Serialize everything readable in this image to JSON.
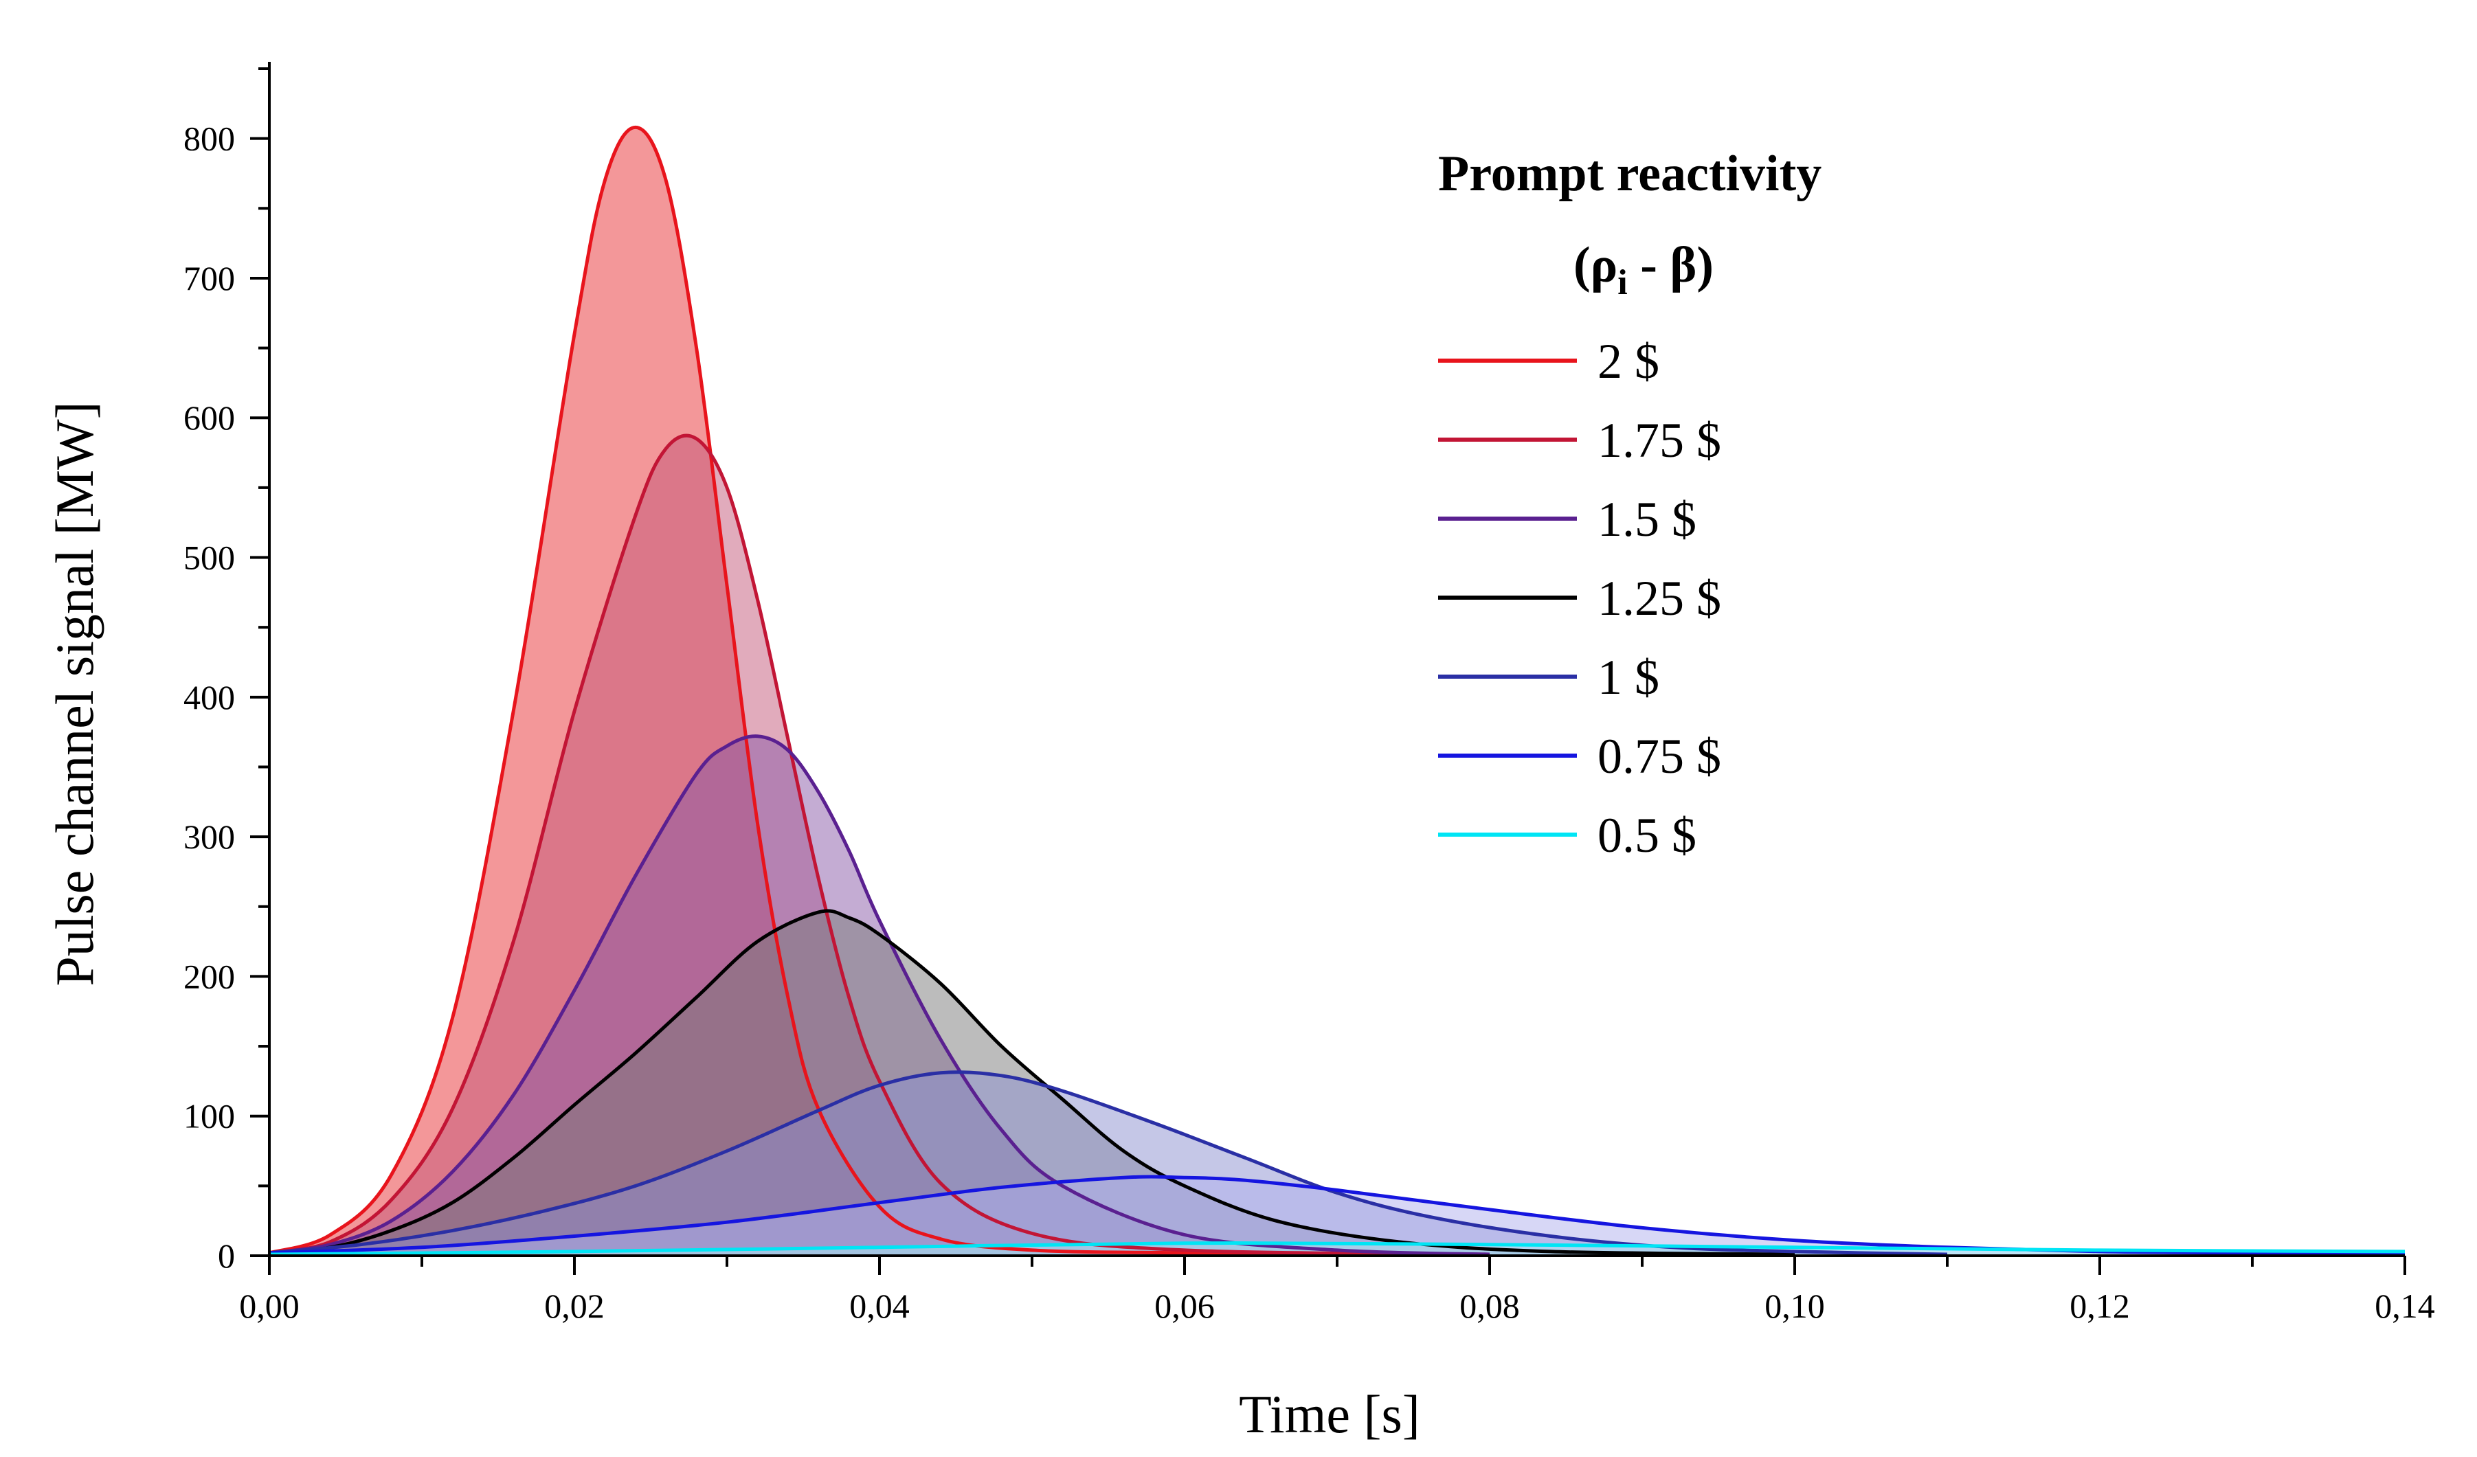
{
  "chart_data": {
    "type": "area",
    "title": "",
    "xlabel": "Time [s]",
    "ylabel": "Pulse channel signal [MW]",
    "xlim": [
      0,
      0.14
    ],
    "ylim": [
      0,
      850
    ],
    "x_ticks": [
      0,
      0.02,
      0.04,
      0.06,
      0.08,
      0.1,
      0.12,
      0.14
    ],
    "x_tick_labels": [
      "0,00",
      "0,02",
      "0,04",
      "0,06",
      "0,08",
      "0,10",
      "0,12",
      "0,14"
    ],
    "y_ticks": [
      0,
      100,
      200,
      300,
      400,
      500,
      600,
      700,
      800
    ],
    "y_tick_labels": [
      "0",
      "100",
      "200",
      "300",
      "400",
      "500",
      "600",
      "700",
      "800"
    ],
    "grid": false,
    "legend": {
      "title_line1": "Prompt reactivity",
      "title_rho": "(ρ",
      "title_sub": "i",
      "title_rest": " - β)",
      "position": "top-right"
    },
    "series": [
      {
        "name": "2 $",
        "color": "#e8141c",
        "fill": "#f28c8e",
        "x": [
          0.0,
          0.004,
          0.008,
          0.012,
          0.016,
          0.02,
          0.022,
          0.024,
          0.026,
          0.028,
          0.03,
          0.032,
          0.034,
          0.036,
          0.04,
          0.044,
          0.05,
          0.06,
          0.07,
          0.08
        ],
        "values": [
          2,
          15,
          58,
          170,
          390,
          660,
          770,
          808,
          770,
          650,
          480,
          310,
          185,
          105,
          35,
          12,
          4,
          2,
          1,
          1
        ]
      },
      {
        "name": "1.75 $",
        "color": "#c21535",
        "fill": "#c4577a",
        "x": [
          0.0,
          0.004,
          0.008,
          0.012,
          0.016,
          0.02,
          0.024,
          0.026,
          0.028,
          0.03,
          0.032,
          0.034,
          0.036,
          0.038,
          0.04,
          0.044,
          0.05,
          0.06,
          0.08
        ],
        "values": [
          2,
          10,
          40,
          105,
          225,
          390,
          530,
          578,
          585,
          550,
          470,
          370,
          270,
          185,
          125,
          52,
          16,
          4,
          1
        ]
      },
      {
        "name": "1.5 $",
        "color": "#5a2090",
        "fill": "#8a5aa8",
        "x": [
          0.0,
          0.004,
          0.008,
          0.012,
          0.016,
          0.02,
          0.024,
          0.028,
          0.03,
          0.032,
          0.034,
          0.036,
          0.038,
          0.04,
          0.044,
          0.048,
          0.052,
          0.06,
          0.07,
          0.08
        ],
        "values": [
          2,
          8,
          25,
          60,
          115,
          190,
          272,
          345,
          365,
          372,
          362,
          332,
          290,
          240,
          155,
          90,
          50,
          15,
          4,
          1
        ]
      },
      {
        "name": "1.25 $",
        "color": "#000000",
        "fill": "#7a7a7a",
        "x": [
          0.0,
          0.004,
          0.008,
          0.012,
          0.016,
          0.02,
          0.024,
          0.028,
          0.032,
          0.036,
          0.038,
          0.04,
          0.044,
          0.048,
          0.052,
          0.056,
          0.06,
          0.066,
          0.074,
          0.084,
          0.1
        ],
        "values": [
          2,
          6,
          18,
          38,
          70,
          108,
          145,
          185,
          225,
          246,
          242,
          230,
          195,
          150,
          112,
          75,
          50,
          25,
          10,
          3,
          1
        ]
      },
      {
        "name": "1 $",
        "color": "#2a2fa5",
        "fill": "#8c8fd0",
        "x": [
          0.0,
          0.006,
          0.012,
          0.018,
          0.024,
          0.03,
          0.036,
          0.04,
          0.044,
          0.048,
          0.052,
          0.058,
          0.064,
          0.07,
          0.076,
          0.084,
          0.092,
          0.1,
          0.11
        ],
        "values": [
          2,
          8,
          18,
          32,
          50,
          75,
          104,
          122,
          131,
          129,
          118,
          95,
          70,
          45,
          28,
          14,
          6,
          3,
          1
        ]
      },
      {
        "name": "0.75 $",
        "color": "#1515e0",
        "fill": "#b0b0ee",
        "x": [
          0.0,
          0.01,
          0.02,
          0.03,
          0.04,
          0.048,
          0.056,
          0.06,
          0.064,
          0.07,
          0.08,
          0.09,
          0.1,
          0.11,
          0.12,
          0.13,
          0.14
        ],
        "values": [
          2,
          6,
          14,
          24,
          38,
          49,
          56,
          56,
          54,
          47,
          33,
          20,
          11,
          6,
          3,
          2,
          1
        ]
      },
      {
        "name": "0.5 $",
        "color": "#00e5f5",
        "fill": "#a8f0f5",
        "x": [
          0.0,
          0.02,
          0.04,
          0.06,
          0.08,
          0.1,
          0.12,
          0.14
        ],
        "values": [
          1,
          3,
          6,
          9,
          8,
          6,
          4,
          3
        ]
      }
    ]
  }
}
